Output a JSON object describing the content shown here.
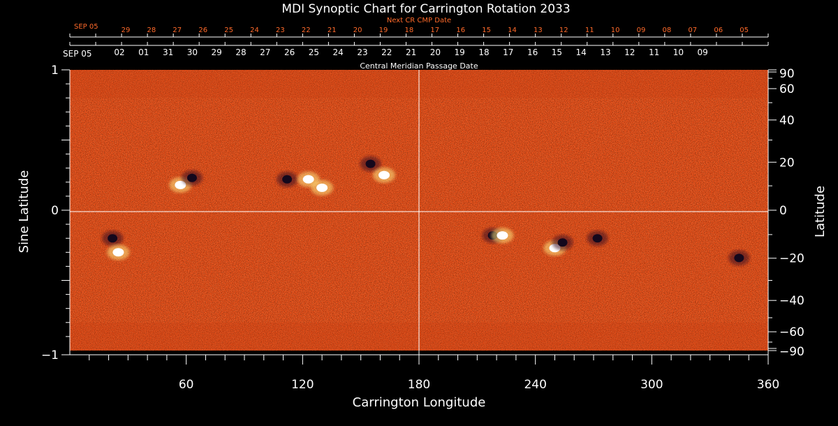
{
  "chart_data": {
    "type": "heatmap",
    "title": "MDI Synoptic Chart for Carrington Rotation 2033",
    "xlabel": "Carrington Longitude",
    "ylabel_left": "Sine Latitude",
    "ylabel_right": "Latitude",
    "xlim": [
      0,
      360
    ],
    "ylim": [
      -1,
      1
    ],
    "x_ticks": [
      "60",
      "120",
      "180",
      "240",
      "300",
      "360"
    ],
    "x_tick_values": [
      60,
      120,
      180,
      240,
      300,
      360
    ],
    "y_ticks_left": [
      "1",
      "0",
      "−1"
    ],
    "y_tick_values_left": [
      1,
      0,
      -1
    ],
    "y_ticks_right": [
      "90",
      "60",
      "40",
      "20",
      "0",
      "−20",
      "−40",
      "−60",
      "−90"
    ],
    "y_tick_values_right": [
      90,
      60,
      40,
      20,
      0,
      -20,
      -40,
      -60,
      -90
    ],
    "top_axis_label": "Central Meridian Passage Date",
    "top_axis_start": "SEP 05",
    "top_axis_dates": [
      "02",
      "01",
      "31",
      "30",
      "29",
      "28",
      "27",
      "26",
      "25",
      "24",
      "23",
      "22",
      "21",
      "20",
      "19",
      "18",
      "17",
      "16",
      "15",
      "14",
      "13",
      "12",
      "11",
      "10",
      "09"
    ],
    "next_cr_label": "Next CR CMP Date",
    "next_cr_start": "SEP 05",
    "next_cr_dates": [
      "29",
      "28",
      "27",
      "26",
      "25",
      "24",
      "23",
      "22",
      "21",
      "20",
      "19",
      "18",
      "17",
      "16",
      "15",
      "14",
      "13",
      "12",
      "11",
      "10",
      "09",
      "08",
      "07",
      "06",
      "05"
    ],
    "active_regions": [
      {
        "lon": 57,
        "sinlat": 0.18,
        "polarity": "positive"
      },
      {
        "lon": 63,
        "sinlat": 0.23,
        "polarity": "negative"
      },
      {
        "lon": 112,
        "sinlat": 0.22,
        "polarity": "negative"
      },
      {
        "lon": 123,
        "sinlat": 0.22,
        "polarity": "positive"
      },
      {
        "lon": 130,
        "sinlat": 0.16,
        "polarity": "positive"
      },
      {
        "lon": 155,
        "sinlat": 0.33,
        "polarity": "negative"
      },
      {
        "lon": 162,
        "sinlat": 0.25,
        "polarity": "positive"
      },
      {
        "lon": 22,
        "sinlat": -0.2,
        "polarity": "negative"
      },
      {
        "lon": 25,
        "sinlat": -0.3,
        "polarity": "positive"
      },
      {
        "lon": 218,
        "sinlat": -0.18,
        "polarity": "negative"
      },
      {
        "lon": 223,
        "sinlat": -0.18,
        "polarity": "positive"
      },
      {
        "lon": 250,
        "sinlat": -0.27,
        "polarity": "positive"
      },
      {
        "lon": 254,
        "sinlat": -0.23,
        "polarity": "negative"
      },
      {
        "lon": 272,
        "sinlat": -0.2,
        "polarity": "negative"
      },
      {
        "lon": 345,
        "sinlat": -0.34,
        "polarity": "negative"
      }
    ]
  }
}
